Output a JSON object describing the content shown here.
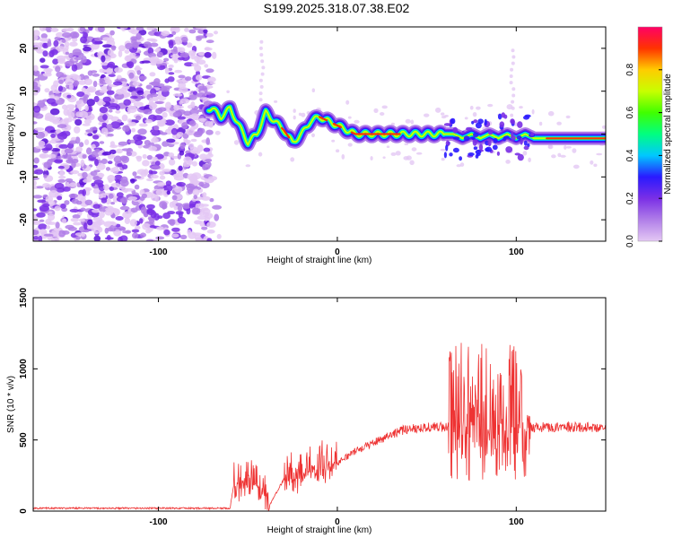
{
  "title": "S199.2025.318.07.38.E02",
  "chart_data": [
    {
      "type": "heatmap",
      "xlabel": "Height of straight line (km)",
      "ylabel": "Frequency (Hz)",
      "xlim": [
        -170,
        150
      ],
      "ylim": [
        -25,
        25
      ],
      "xticks": [
        -100,
        0,
        100
      ],
      "yticks": [
        -20,
        -10,
        0,
        10,
        20
      ],
      "xtick_labels": [
        "-100",
        "0",
        "100"
      ],
      "ytick_labels": [
        "-20",
        "-10",
        "0",
        "10",
        "20"
      ],
      "noise_region_x": [
        -170,
        -70
      ],
      "trace": {
        "x": [
          -70,
          -65,
          -60,
          -55,
          -50,
          -45,
          -40,
          -35,
          -30,
          -25,
          -20,
          -15,
          -10,
          -5,
          0,
          5,
          10,
          15,
          20,
          25,
          30,
          40,
          50,
          60,
          65,
          70,
          75,
          80,
          85,
          90,
          95,
          100,
          105,
          110,
          120,
          130,
          140,
          150
        ],
        "y": [
          6,
          4,
          6,
          2,
          -2,
          0,
          5,
          3,
          1,
          -2,
          0,
          3,
          4,
          3,
          2,
          1,
          0,
          0,
          0,
          0,
          0,
          0,
          0,
          0,
          0,
          -1,
          0,
          -1,
          0,
          -1,
          0,
          -1,
          0,
          -1,
          -1,
          -1,
          -1,
          -1
        ]
      },
      "colorbar": {
        "label": "Normalized spectral amplitude",
        "ticks": [
          "0.0",
          "0.2",
          "0.4",
          "0.6",
          "0.8"
        ],
        "range": [
          0,
          1
        ],
        "colors": [
          "#ffffff",
          "#e4c8f4",
          "#b07ee8",
          "#7a2fe6",
          "#2a1aff",
          "#00c8ff",
          "#00ff80",
          "#40ff00",
          "#c8ff00",
          "#ffcc00",
          "#ff3300",
          "#ff0066"
        ]
      }
    },
    {
      "type": "line",
      "xlabel": "Height of straight line (km)",
      "ylabel": "SNR (10 * v/v)",
      "xlim": [
        -170,
        150
      ],
      "ylim": [
        0,
        1500
      ],
      "xticks": [
        -100,
        0,
        100
      ],
      "yticks": [
        0,
        500,
        1000,
        1500
      ],
      "xtick_labels": [
        "-100",
        "0",
        "100"
      ],
      "ytick_labels": [
        "0",
        "500",
        "1000",
        "1500"
      ],
      "color": "#ee3333",
      "envelope": {
        "x": [
          -170,
          -60,
          -58,
          -50,
          -42,
          -38,
          -30,
          -20,
          -10,
          0,
          10,
          20,
          30,
          40,
          50,
          60,
          62,
          70,
          80,
          90,
          100,
          105,
          108,
          150
        ],
        "y": [
          20,
          20,
          170,
          200,
          160,
          40,
          220,
          260,
          300,
          340,
          420,
          480,
          540,
          580,
          590,
          590,
          600,
          600,
          600,
          600,
          600,
          600,
          590,
          590
        ]
      },
      "bursts": [
        {
          "x": [
            -58,
            -38
          ],
          "amp": 140
        },
        {
          "x": [
            -30,
            0
          ],
          "amp": 150
        },
        {
          "x": [
            62,
            108
          ],
          "amp": 500
        }
      ]
    }
  ]
}
